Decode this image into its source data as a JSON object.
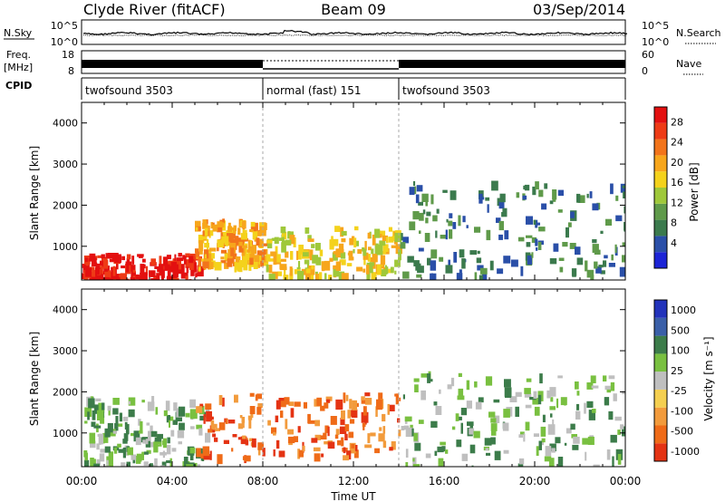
{
  "header": {
    "station": "Clyde River (fitACF)",
    "beam": "Beam 09",
    "date": "03/Sep/2014"
  },
  "noise_panel": {
    "left_label": "N.Sky",
    "right_label": "N.Search",
    "left_ticks": [
      "10^5",
      "10^0"
    ],
    "right_ticks": [
      "10^5",
      "10^0"
    ]
  },
  "freq_panel": {
    "label_line1": "Freq.",
    "label_line2": "[MHz]",
    "left_ticks": [
      "18",
      "8"
    ],
    "right_label": "Nave",
    "right_ticks": [
      "60",
      "0"
    ]
  },
  "cpid_panel": {
    "label": "CPID",
    "segments": [
      {
        "name": "twofsound 3503",
        "start_hour": 0,
        "end_hour": 8
      },
      {
        "name": "normal (fast) 151",
        "start_hour": 8,
        "end_hour": 14
      },
      {
        "name": "twofsound 3503",
        "start_hour": 14,
        "end_hour": 24
      }
    ]
  },
  "time_axis": {
    "ticks": [
      "00:00",
      "04:00",
      "08:00",
      "12:00",
      "16:00",
      "20:00",
      "00:00"
    ],
    "label": "Time UT"
  },
  "chart_data": [
    {
      "type": "heatmap",
      "title": "",
      "xlabel": "Time UT",
      "ylabel": "Slant Range [km]",
      "xlim": [
        0,
        24
      ],
      "ylim": [
        180,
        4500
      ],
      "yticks": [
        "1000",
        "2000",
        "3000",
        "4000"
      ],
      "colorbar": {
        "label": "Power [dB]",
        "ticks": [
          "4",
          "8",
          "12",
          "16",
          "20",
          "24",
          "28"
        ],
        "colors": [
          "#1c24d6",
          "#2a4fa8",
          "#3b7a4d",
          "#5f9a4a",
          "#9fc83a",
          "#f4d21c",
          "#f7a61c",
          "#f2741b",
          "#ee3b16",
          "#e31010"
        ]
      },
      "regions": [
        {
          "t": [
            0.0,
            5.2
          ],
          "r": [
            200,
            850
          ],
          "level": "28"
        },
        {
          "t": [
            5.0,
            8.0
          ],
          "r": [
            600,
            1700
          ],
          "level": "20"
        },
        {
          "t": [
            8.0,
            14.0
          ],
          "r": [
            300,
            1500
          ],
          "level": "16"
        },
        {
          "t": [
            14.0,
            24.0
          ],
          "r": [
            300,
            2600
          ],
          "level": "8"
        }
      ]
    },
    {
      "type": "heatmap",
      "title": "",
      "xlabel": "Time UT",
      "ylabel": "Slant Range [km]",
      "xlim": [
        0,
        24
      ],
      "ylim": [
        180,
        4500
      ],
      "yticks": [
        "1000",
        "2000",
        "3000",
        "4000"
      ],
      "colorbar": {
        "label": "Velocity [m s⁻¹]",
        "ticks": [
          "1000",
          "500",
          "100",
          "25",
          "-25",
          "-100",
          "-500",
          "-1000"
        ],
        "colors": [
          "#2233bb",
          "#3a5fa8",
          "#3c7c4a",
          "#79c040",
          "#bfbfbf",
          "#f4cf50",
          "#f29b3c",
          "#ef6b18",
          "#e43313"
        ]
      },
      "regions": [
        {
          "t": [
            0.0,
            5.5
          ],
          "r": [
            200,
            1900
          ],
          "level": "25"
        },
        {
          "t": [
            5.0,
            14.0
          ],
          "r": [
            400,
            2000
          ],
          "level": "-500"
        },
        {
          "t": [
            14.0,
            24.0
          ],
          "r": [
            200,
            2500
          ],
          "level": "25"
        }
      ]
    }
  ]
}
